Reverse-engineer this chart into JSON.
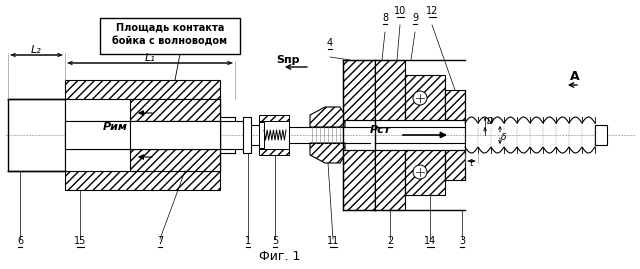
{
  "title": "Фиг. 1",
  "label_box_title": "Площадь контакта",
  "label_box_subtitle": "бойка с волноводом",
  "label_L2": "L₂",
  "label_L1": "L₁",
  "label_Spr": "Sпр",
  "label_Rim": "Pим",
  "label_Rst": "Pст",
  "label_A": "A",
  "label_t": "t",
  "label_D": "D",
  "label_d1": "δ",
  "label_d2": "D",
  "bg_color": "#ffffff"
}
